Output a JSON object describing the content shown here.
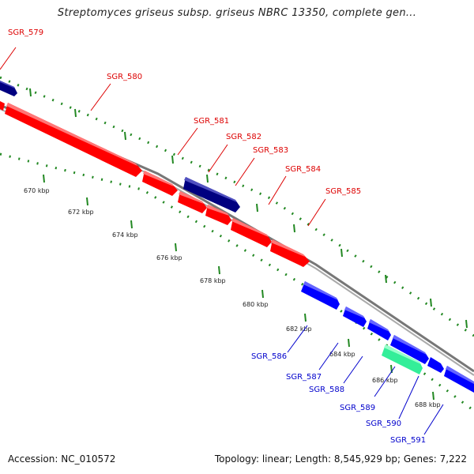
{
  "title": "Streptomyces griseus subsp. griseus NBRC 13350, complete gen...",
  "footer": {
    "accession": "Accession: NC_010572",
    "summary": "Topology: linear; Length: 8,545,929 bp; Genes: 7,222"
  },
  "colors": {
    "forward_gene": "#ff0000",
    "forward_gene_dark": "#000080",
    "reverse_gene": "#0000ff",
    "reverse_gene_highlight": "#33ee99",
    "backbone": "#888888",
    "ticks": "#228822",
    "forward_label": "#dd0000",
    "reverse_label": "#0000cc"
  },
  "ruler": {
    "ticks": [
      "670 kbp",
      "672 kbp",
      "674 kbp",
      "676 kbp",
      "678 kbp",
      "680 kbp",
      "682 kbp",
      "684 kbp",
      "686 kbp",
      "688 kbp"
    ]
  },
  "genes_forward": [
    {
      "name": "SGR_579"
    },
    {
      "name": "SGR_580"
    },
    {
      "name": "SGR_581"
    },
    {
      "name": "SGR_582"
    },
    {
      "name": "SGR_583"
    },
    {
      "name": "SGR_584"
    },
    {
      "name": "SGR_585"
    }
  ],
  "genes_reverse": [
    {
      "name": "SGR_586"
    },
    {
      "name": "SGR_587"
    },
    {
      "name": "SGR_588"
    },
    {
      "name": "SGR_589"
    },
    {
      "name": "SGR_590"
    },
    {
      "name": "SGR_591"
    }
  ]
}
